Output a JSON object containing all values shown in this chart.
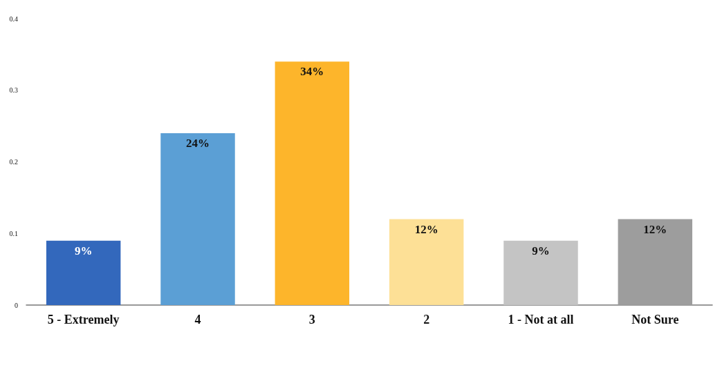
{
  "chart_data": {
    "type": "bar",
    "categories": [
      "5 - Extremely",
      "4",
      "3",
      "2",
      "1 - Not at all",
      "Not Sure"
    ],
    "values": [
      0.09,
      0.24,
      0.34,
      0.12,
      0.09,
      0.12
    ],
    "colors": [
      "#3368bc",
      "#5b9fd5",
      "#fdb52b",
      "#fde096",
      "#c4c4c4",
      "#9d9d9d"
    ],
    "value_labels": [
      "9%",
      "24%",
      "34%",
      "12%",
      "9%",
      "12%"
    ],
    "ylim": [
      0,
      0.4
    ],
    "yticks": [
      0,
      0.1,
      0.2,
      0.3,
      0.4
    ],
    "grid": false
  }
}
